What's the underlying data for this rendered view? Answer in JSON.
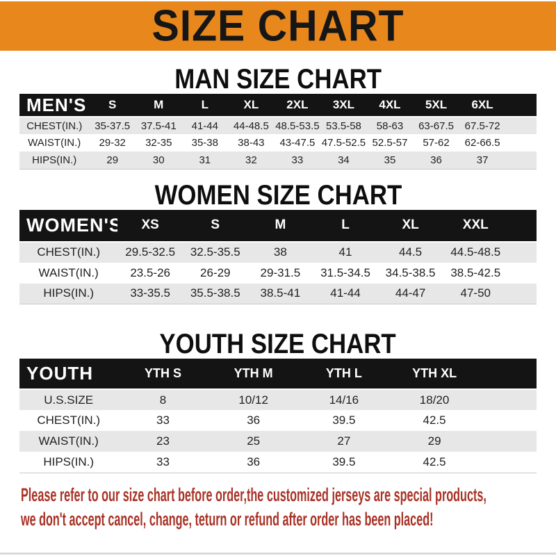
{
  "banner": {
    "title": "SIZE CHART"
  },
  "colors": {
    "banner_bg": "#E8871C",
    "bar_bg": "#141414",
    "row_alt": "#E7E7E7",
    "footer_red": "#A93226"
  },
  "tables": {
    "men": {
      "section_title": "MAN SIZE CHART",
      "header_label": "MEN'S",
      "columns": [
        "S",
        "M",
        "L",
        "XL",
        "2XL",
        "3XL",
        "4XL",
        "5XL",
        "6XL"
      ],
      "rows": [
        {
          "label": "CHEST(IN.)",
          "values": [
            "35-37.5",
            "37.5-41",
            "41-44",
            "44-48.5",
            "48.5-53.5",
            "53.5-58",
            "58-63",
            "63-67.5",
            "67.5-72"
          ]
        },
        {
          "label": "WAIST(IN.)",
          "values": [
            "29-32",
            "32-35",
            "35-38",
            "38-43",
            "43-47.5",
            "47.5-52.5",
            "52.5-57",
            "57-62",
            "62-66.5"
          ]
        },
        {
          "label": "HIPS(IN.)",
          "values": [
            "29",
            "30",
            "31",
            "32",
            "33",
            "34",
            "35",
            "36",
            "37"
          ]
        }
      ]
    },
    "women": {
      "section_title": "WOMEN SIZE CHART",
      "header_label": "WOMEN'S",
      "columns": [
        "XS",
        "S",
        "M",
        "L",
        "XL",
        "XXL"
      ],
      "rows": [
        {
          "label": "CHEST(IN.)",
          "values": [
            "29.5-32.5",
            "32.5-35.5",
            "38",
            "41",
            "44.5",
            "44.5-48.5"
          ]
        },
        {
          "label": "WAIST(IN.)",
          "values": [
            "23.5-26",
            "26-29",
            "29-31.5",
            "31.5-34.5",
            "34.5-38.5",
            "38.5-42.5"
          ]
        },
        {
          "label": "HIPS(IN.)",
          "values": [
            "33-35.5",
            "35.5-38.5",
            "38.5-41",
            "41-44",
            "44-47",
            "47-50"
          ]
        }
      ]
    },
    "youth": {
      "section_title": "YOUTH SIZE CHART",
      "header_label": "YOUTH",
      "columns": [
        "YTH S",
        "YTH M",
        "YTH L",
        "YTH XL"
      ],
      "rows": [
        {
          "label": "U.S.SIZE",
          "values": [
            "8",
            "10/12",
            "14/16",
            "18/20"
          ]
        },
        {
          "label": "CHEST(IN.)",
          "values": [
            "33",
            "36",
            "39.5",
            "42.5"
          ]
        },
        {
          "label": "WAIST(IN.)",
          "values": [
            "23",
            "25",
            "27",
            "29"
          ]
        },
        {
          "label": "HIPS(IN.)",
          "values": [
            "33",
            "36",
            "39.5",
            "42.5"
          ]
        }
      ]
    }
  },
  "footer": {
    "line1": "Please refer to our size chart before order,the customized jerseys are special products,",
    "line2": "we don't accept cancel, change, teturn or refund after order has been placed!"
  }
}
